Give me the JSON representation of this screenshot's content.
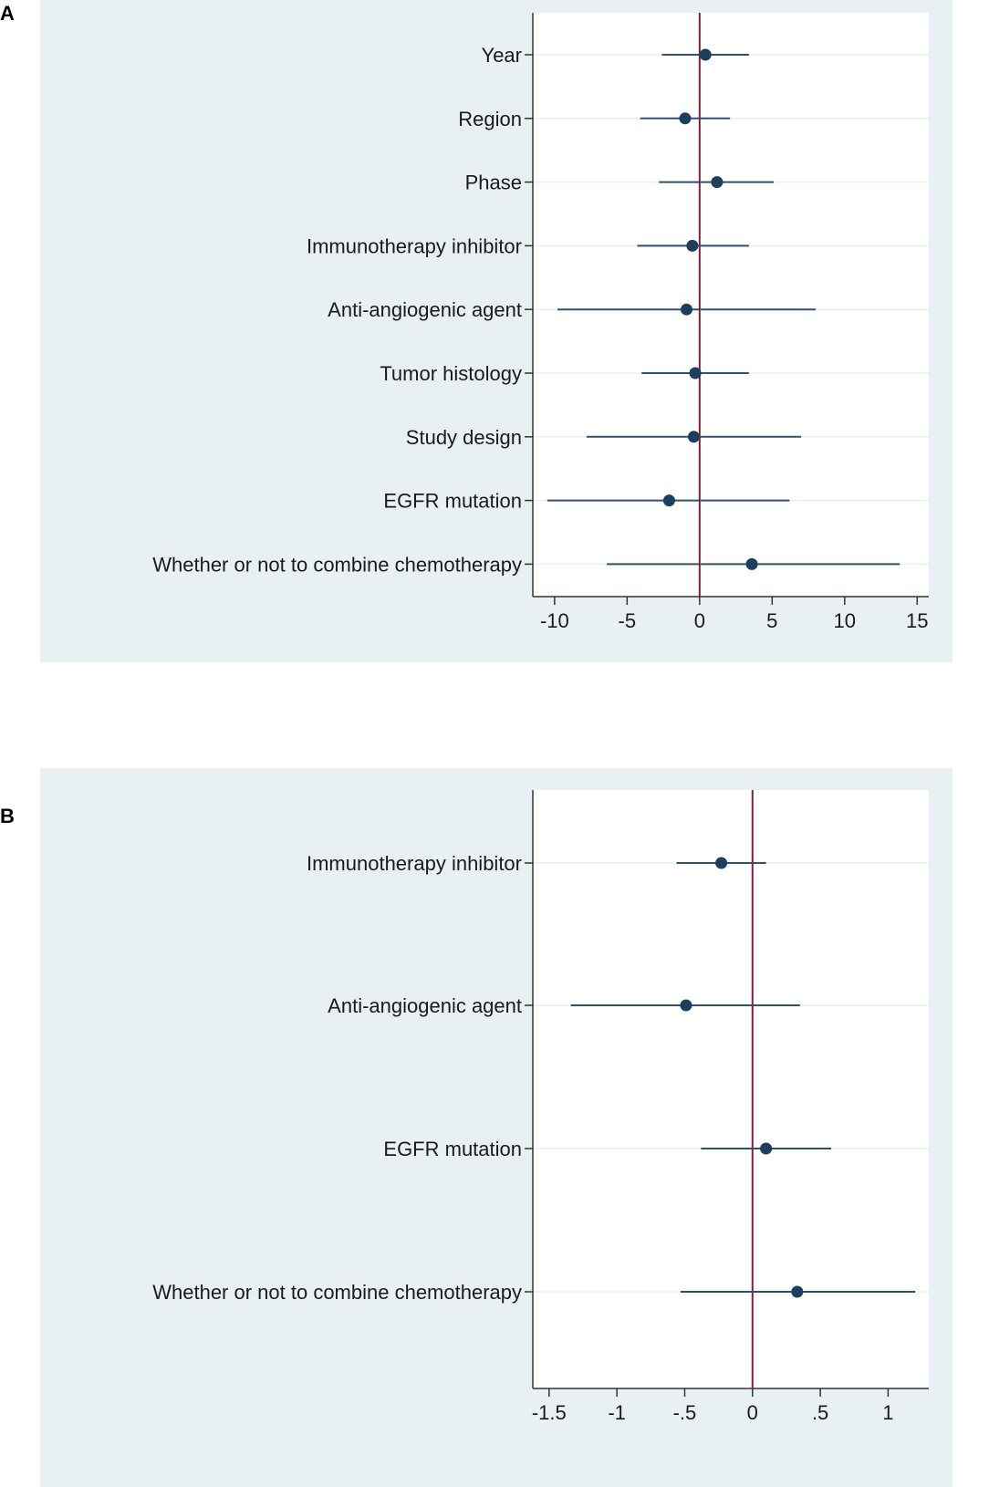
{
  "panels": {
    "a": {
      "letter": "A"
    },
    "b": {
      "letter": "B"
    }
  },
  "colors": {
    "panel_bg": "#e9f0f4",
    "plot_bg": "#ffffff",
    "point": "#1c3f5e",
    "ci_line": "#33506b",
    "reference_line": "#8b1a3e",
    "grid": "#e8eef2",
    "axis": "#333333"
  },
  "chart_data": [
    {
      "type": "scatter",
      "subtype": "forest",
      "panel": "A",
      "categories": [
        "Year",
        "Region",
        "Phase",
        "Immunotherapy inhibitor",
        "Anti-angiogenic agent",
        "Tumor histology",
        "Study design",
        "EGFR mutation",
        "Whether or not to combine chemotherapy"
      ],
      "estimates": [
        0.4,
        -1.0,
        1.2,
        -0.5,
        -0.9,
        -0.3,
        -0.4,
        -2.1,
        3.6
      ],
      "ci_lower": [
        -2.6,
        -4.1,
        -2.8,
        -4.3,
        -9.8,
        -4.0,
        -7.8,
        -10.5,
        -6.4
      ],
      "ci_upper": [
        3.4,
        2.1,
        5.1,
        3.4,
        8.0,
        3.4,
        7.0,
        6.2,
        13.8
      ],
      "xticks": [
        -10,
        -5,
        0,
        5,
        10,
        15
      ],
      "xtick_labels": [
        "-10",
        "-5",
        "0",
        "5",
        "10",
        "15"
      ],
      "xlim": [
        -11.5,
        15.8
      ],
      "reference_x": 0,
      "grid": true
    },
    {
      "type": "scatter",
      "subtype": "forest",
      "panel": "B",
      "categories": [
        "Immunotherapy inhibitor",
        "Anti-angiogenic agent",
        "EGFR mutation",
        "Whether or not to combine chemotherapy"
      ],
      "estimates": [
        -0.23,
        -0.49,
        0.1,
        0.33
      ],
      "ci_lower": [
        -0.56,
        -1.34,
        -0.38,
        -0.53
      ],
      "ci_upper": [
        0.1,
        0.35,
        0.58,
        1.2
      ],
      "xticks": [
        -1.5,
        -1,
        -0.5,
        0,
        0.5,
        1
      ],
      "xtick_labels": [
        "-1.5",
        "-1",
        "-.5",
        "0",
        ".5",
        "1"
      ],
      "xlim": [
        -1.62,
        1.3
      ],
      "reference_x": 0,
      "grid": true
    }
  ]
}
